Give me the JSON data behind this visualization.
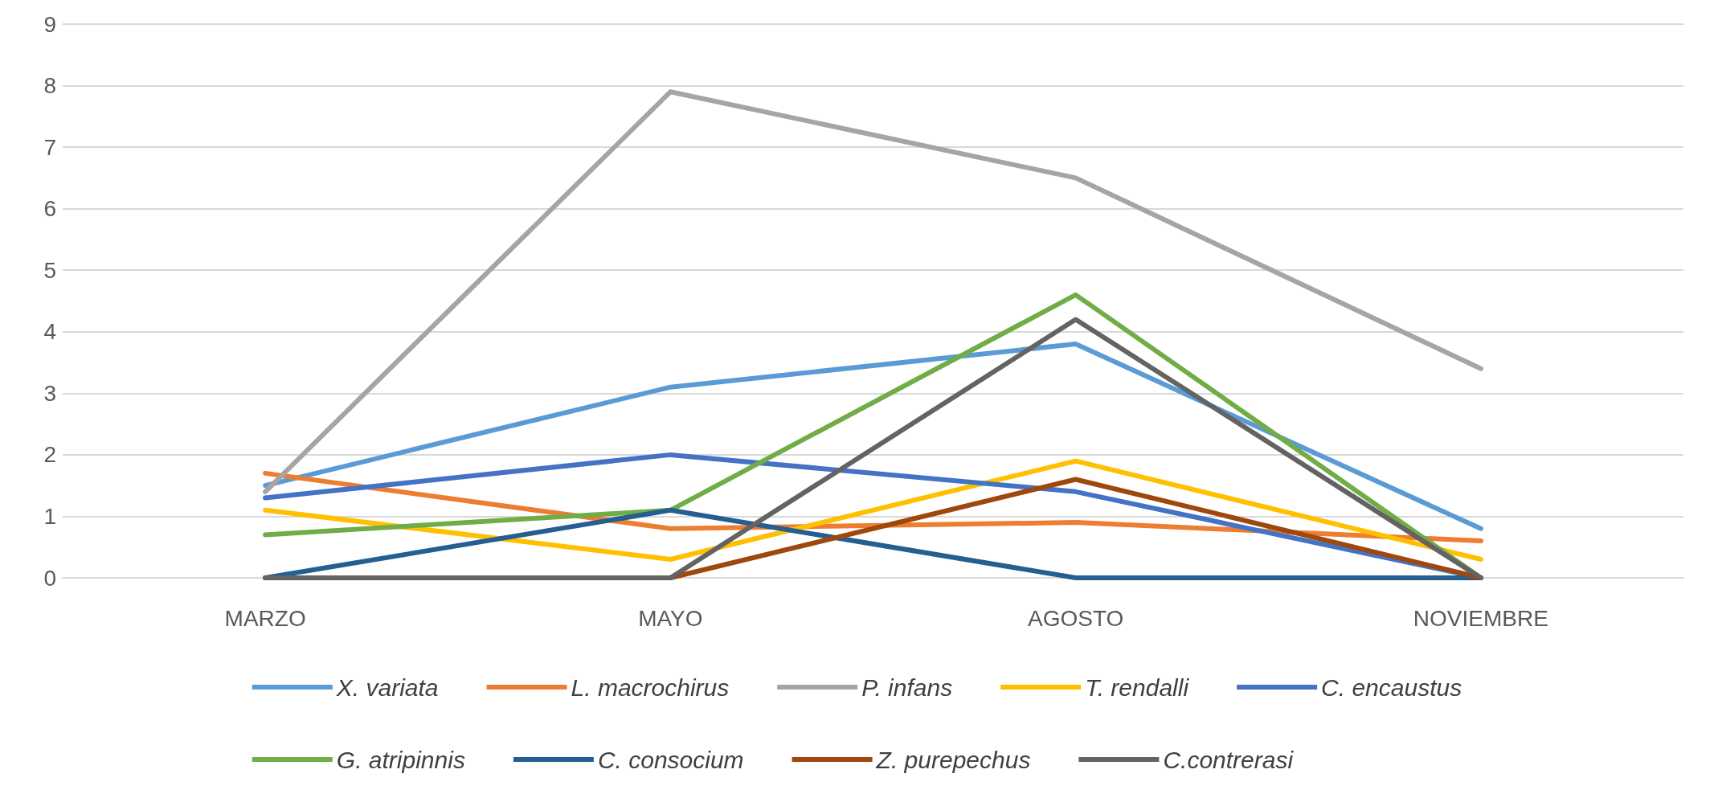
{
  "chart_data": {
    "type": "line",
    "categories": [
      "MARZO",
      "MAYO",
      "AGOSTO",
      "NOVIEMBRE"
    ],
    "ylim": [
      0,
      9
    ],
    "yticks": [
      0,
      1,
      2,
      3,
      4,
      5,
      6,
      7,
      8,
      9
    ],
    "grid": "y",
    "legend": "bottom",
    "marker": "none",
    "line_style": "solid",
    "series": [
      {
        "name": "X. variata",
        "color": "#5b9bd5",
        "values": [
          1.5,
          3.1,
          3.8,
          0.8
        ]
      },
      {
        "name": "L. macrochirus",
        "color": "#ed7d31",
        "values": [
          1.7,
          0.8,
          0.9,
          0.6
        ]
      },
      {
        "name": "P. infans",
        "color": "#a5a5a5",
        "values": [
          1.4,
          7.9,
          6.5,
          3.4
        ]
      },
      {
        "name": "T. rendalli",
        "color": "#ffc000",
        "values": [
          1.1,
          0.3,
          1.9,
          0.3
        ]
      },
      {
        "name": "C. encaustus",
        "color": "#4472c4",
        "values": [
          1.3,
          2.0,
          1.4,
          0
        ]
      },
      {
        "name": "G. atripinnis",
        "color": "#70ad47",
        "values": [
          0.7,
          1.1,
          4.6,
          0
        ]
      },
      {
        "name": "C. consocium",
        "color": "#255e91",
        "values": [
          0,
          1.1,
          0,
          0
        ]
      },
      {
        "name": "Z. purepechus",
        "color": "#9e480e",
        "values": [
          0,
          0,
          1.6,
          0
        ]
      },
      {
        "name": "C.contrerasi",
        "color": "#636363",
        "values": [
          0,
          0,
          4.2,
          0
        ]
      }
    ]
  }
}
